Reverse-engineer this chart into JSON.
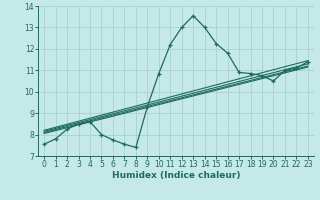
{
  "xlabel": "Humidex (Indice chaleur)",
  "bg_color": "#c5e8e8",
  "grid_color": "#acd4d4",
  "line_color": "#1e6b5e",
  "xlim": [
    -0.5,
    23.5
  ],
  "ylim": [
    7,
    14
  ],
  "xticks": [
    0,
    1,
    2,
    3,
    4,
    5,
    6,
    7,
    8,
    9,
    10,
    11,
    12,
    13,
    14,
    15,
    16,
    17,
    18,
    19,
    20,
    21,
    22,
    23
  ],
  "yticks": [
    7,
    8,
    9,
    10,
    11,
    12,
    13,
    14
  ],
  "main_x": [
    0,
    1,
    2,
    3,
    4,
    5,
    6,
    7,
    8,
    9,
    10,
    11,
    12,
    13,
    14,
    15,
    16,
    17,
    18,
    19,
    20,
    21,
    22,
    23
  ],
  "main_y": [
    7.55,
    7.8,
    8.25,
    8.5,
    8.6,
    8.0,
    7.75,
    7.55,
    7.4,
    9.3,
    10.85,
    12.2,
    13.0,
    13.55,
    13.0,
    12.25,
    11.8,
    10.9,
    10.85,
    10.75,
    10.5,
    11.0,
    11.1,
    11.4
  ],
  "reg_lines": [
    {
      "x0": 0,
      "y0": 8.05,
      "x1": 23,
      "y1": 11.15
    },
    {
      "x0": 0,
      "y0": 8.1,
      "x1": 23,
      "y1": 11.2
    },
    {
      "x0": 0,
      "y0": 8.15,
      "x1": 23,
      "y1": 11.3
    },
    {
      "x0": 0,
      "y0": 8.2,
      "x1": 23,
      "y1": 11.45
    }
  ]
}
